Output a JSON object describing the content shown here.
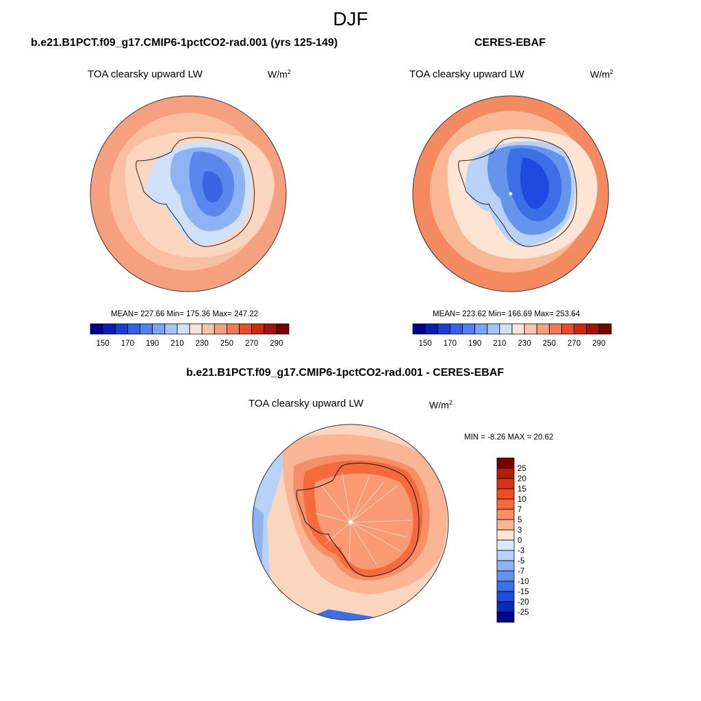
{
  "page": {
    "title": "DJF"
  },
  "panels": [
    {
      "title": "b.e21.B1PCT.f09_g17.CMIP6-1pctCO2-rad.001 (yrs 125-149)",
      "variable": "TOA clearsky upward LW",
      "units_base": "W/m",
      "units_exp": "2",
      "stats": "MEAN= 227.66  Min= 175.36  Max= 247.22"
    },
    {
      "title": "CERES-EBAF",
      "variable": "TOA clearsky upward LW",
      "units_base": "W/m",
      "units_exp": "2",
      "stats": "MEAN= 223.62  Min= 166.69  Max= 253.64"
    },
    {
      "title": "b.e21.B1PCT.f09_g17.CMIP6-1pctCO2-rad.001 - CERES-EBAF",
      "variable": "TOA clearsky upward LW",
      "units_base": "W/m",
      "units_exp": "2",
      "stats": "MIN =  -8.26 MAX =  20.62"
    }
  ],
  "chart_data": [
    {
      "type": "heatmap",
      "title": "b.e21.B1PCT.f09_g17.CMIP6-1pctCO2-rad.001 (yrs 125-149)",
      "variable": "TOA clearsky upward LW",
      "units": "W/m2",
      "projection": "south polar stereographic",
      "mean": 227.66,
      "min": 175.36,
      "max": 247.22,
      "colorbar": {
        "levels": [
          150,
          160,
          170,
          180,
          190,
          200,
          210,
          220,
          230,
          240,
          250,
          260,
          270,
          280,
          290
        ],
        "tick_labels": [
          "150",
          "170",
          "190",
          "210",
          "230",
          "250",
          "270",
          "290"
        ],
        "colors": [
          "#000090",
          "#0a1eb3",
          "#1e3cd2",
          "#3260e8",
          "#4f82f0",
          "#78a5f5",
          "#a5c3f7",
          "#d2e1f9",
          "#fde4d3",
          "#f9c4a7",
          "#f59f7d",
          "#f17a58",
          "#ea4c2a",
          "#cc2a10",
          "#a0140a",
          "#780000"
        ]
      }
    },
    {
      "type": "heatmap",
      "title": "CERES-EBAF",
      "variable": "TOA clearsky upward LW",
      "units": "W/m2",
      "projection": "south polar stereographic",
      "mean": 223.62,
      "min": 166.69,
      "max": 253.64,
      "colorbar": {
        "levels": [
          150,
          160,
          170,
          180,
          190,
          200,
          210,
          220,
          230,
          240,
          250,
          260,
          270,
          280,
          290
        ],
        "tick_labels": [
          "150",
          "170",
          "190",
          "210",
          "230",
          "250",
          "270",
          "290"
        ],
        "colors": [
          "#000090",
          "#0a1eb3",
          "#1e3cd2",
          "#3260e8",
          "#4f82f0",
          "#78a5f5",
          "#a5c3f7",
          "#d2e1f9",
          "#fde4d3",
          "#f9c4a7",
          "#f59f7d",
          "#f17a58",
          "#ea4c2a",
          "#cc2a10",
          "#a0140a",
          "#780000"
        ]
      }
    },
    {
      "type": "heatmap",
      "title": "b.e21.B1PCT.f09_g17.CMIP6-1pctCO2-rad.001 - CERES-EBAF",
      "variable": "TOA clearsky upward LW",
      "units": "W/m2",
      "projection": "south polar stereographic",
      "min": -8.26,
      "max": 20.62,
      "colorbar": {
        "tick_labels": [
          "25",
          "20",
          "15",
          "10",
          "7",
          "5",
          "3",
          "0",
          "-3",
          "-5",
          "-7",
          "-10",
          "-15",
          "-20",
          "-25"
        ],
        "colors_top_to_bottom": [
          "#780000",
          "#b01e05",
          "#d83212",
          "#f04c1e",
          "#f56a3c",
          "#f78f66",
          "#f9b594",
          "#fde4d3",
          "#dce9fb",
          "#b8d2f7",
          "#8fb3f2",
          "#6494ec",
          "#3c6ee6",
          "#1e4ae0",
          "#0a2ab8",
          "#000090"
        ]
      }
    }
  ]
}
